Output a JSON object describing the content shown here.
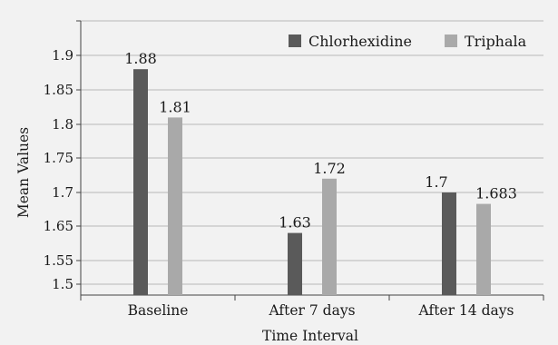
{
  "chart_data": {
    "type": "bar",
    "title": "",
    "xlabel": "Time Interval",
    "ylabel": "Mean Values",
    "categories": [
      "Baseline",
      "After 7 days",
      "After 14 days"
    ],
    "series": [
      {
        "name": "Chlorhexidine",
        "color": "#5a5a5a",
        "values": [
          1.88,
          1.63,
          1.7
        ],
        "labels": [
          "1.88",
          "1.63",
          "1.7"
        ]
      },
      {
        "name": "Triphala",
        "color": "#a9a9a9",
        "values": [
          1.81,
          1.72,
          1.683
        ],
        "labels": [
          "1.81",
          "1.72",
          "1.683"
        ]
      }
    ],
    "y_tick_labels": [
      "1.5",
      "1.55",
      "1.65",
      "1.7",
      "1.75",
      "1.8",
      "1.85",
      "1.9"
    ],
    "grid": "horizontal",
    "legend_position": "top-right"
  }
}
